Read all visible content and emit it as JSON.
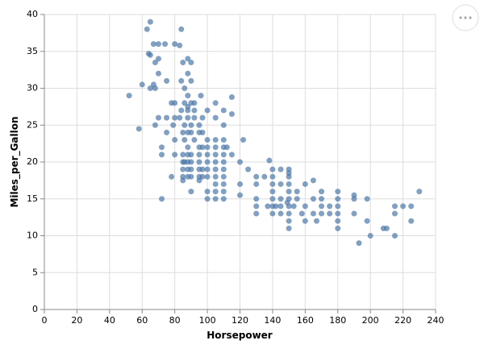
{
  "chart_data": {
    "type": "scatter",
    "x_label": "Horsepower",
    "y_label": "Miles_per_Gallon",
    "color": "#4c78a8",
    "grid": true,
    "xlim": [
      0,
      240
    ],
    "xticks": [
      0,
      20,
      40,
      60,
      80,
      100,
      120,
      140,
      160,
      180,
      200,
      220,
      240
    ],
    "ylim": [
      0,
      40
    ],
    "yticks": [
      0,
      5,
      10,
      15,
      20,
      25,
      30,
      35,
      40
    ],
    "x": [
      65,
      63,
      84,
      67,
      64,
      65,
      70,
      68,
      70,
      74,
      80,
      85,
      88,
      90,
      83,
      70,
      88,
      60,
      65,
      68,
      75,
      84,
      86,
      90,
      52,
      67,
      88,
      96,
      115,
      78,
      80,
      86,
      90,
      92,
      105,
      88,
      84,
      88,
      92,
      100,
      110,
      115,
      70,
      75,
      80,
      83,
      88,
      92,
      97,
      105,
      68,
      79,
      86,
      90,
      95,
      110,
      58,
      75,
      88,
      95,
      90,
      97,
      85,
      80,
      86,
      92,
      100,
      105,
      110,
      122,
      72,
      88,
      95,
      97,
      100,
      105,
      110,
      112,
      72,
      80,
      85,
      88,
      90,
      95,
      100,
      105,
      110,
      115,
      85,
      86,
      88,
      90,
      95,
      100,
      105,
      110,
      120,
      138,
      85,
      88,
      90,
      95,
      97,
      100,
      105,
      110,
      125,
      140,
      145,
      150,
      78,
      85,
      88,
      90,
      95,
      97,
      100,
      105,
      110,
      130,
      135,
      140,
      150,
      150,
      85,
      95,
      105,
      110,
      120,
      130,
      140,
      145,
      150,
      160,
      165,
      90,
      100,
      105,
      110,
      140,
      150,
      155,
      170,
      180,
      190,
      100,
      105,
      110,
      120,
      130,
      140,
      145,
      150,
      155,
      165,
      170,
      180,
      190,
      198,
      72,
      130,
      140,
      145,
      150,
      153,
      160,
      170,
      175,
      180,
      215,
      220,
      225,
      230,
      130,
      140,
      145,
      150,
      158,
      165,
      170,
      175,
      180,
      190,
      215,
      150,
      160,
      167,
      180,
      198,
      225,
      150,
      180,
      208,
      210,
      193,
      200,
      215,
      137,
      142,
      149
    ],
    "values": [
      39,
      38,
      38,
      36,
      34.7,
      34.5,
      34,
      33.5,
      36,
      36,
      36,
      33.5,
      34,
      33.5,
      35.8,
      32,
      32,
      30.5,
      30,
      30,
      31,
      31,
      30,
      31,
      29,
      30.5,
      29,
      29,
      28.8,
      28,
      28,
      28,
      28,
      28,
      28,
      27.5,
      27,
      27,
      27,
      27,
      27,
      26.5,
      26,
      26,
      26,
      26,
      26,
      26,
      26,
      26,
      25,
      25,
      25,
      25,
      25,
      25,
      24.5,
      24,
      24,
      24,
      24,
      24,
      24,
      23,
      23,
      23,
      23,
      23,
      23,
      23,
      22,
      22,
      22,
      22,
      22,
      22,
      22,
      22,
      21,
      21,
      21,
      21,
      21,
      21,
      21,
      21,
      21,
      21,
      20,
      20,
      20,
      20,
      20,
      20,
      20,
      20,
      20,
      20.2,
      19,
      19,
      19,
      19,
      19,
      19,
      19,
      19,
      19,
      19,
      19,
      19,
      18,
      18,
      18,
      18,
      18,
      18,
      18,
      18,
      18,
      18,
      18,
      18,
      18,
      18.5,
      17.5,
      17.5,
      17,
      17,
      17,
      17,
      17,
      17,
      17,
      17,
      17.5,
      16,
      16,
      16,
      16,
      16,
      16,
      16,
      16,
      16,
      15.5,
      15,
      15,
      15,
      15.5,
      15,
      15,
      15,
      15,
      15,
      15,
      15,
      15,
      15,
      15,
      15,
      14,
      14,
      14,
      14,
      14,
      14,
      14,
      14,
      14,
      14,
      14,
      14,
      16,
      13,
      13,
      13,
      13,
      13,
      13,
      13,
      13,
      13,
      13,
      13,
      12,
      12,
      12,
      12,
      12,
      12,
      11,
      11,
      11,
      11,
      9,
      10,
      10,
      14,
      14,
      14.5
    ]
  }
}
